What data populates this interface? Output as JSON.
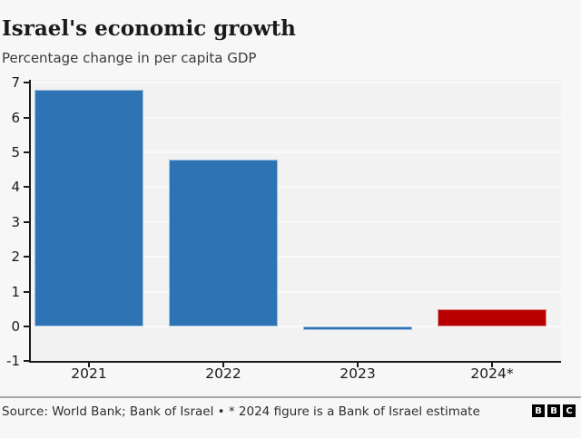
{
  "header": {
    "title": "Israel's economic growth",
    "subtitle": "Percentage change in per capita GDP"
  },
  "chart_data": {
    "type": "bar",
    "title": "Israel's economic growth",
    "subtitle": "Percentage change in per capita GDP",
    "categories": [
      "2021",
      "2022",
      "2023",
      "2024*"
    ],
    "values": [
      6.8,
      4.8,
      -0.1,
      0.5
    ],
    "bar_colors": [
      "#2e74b5",
      "#2e74b5",
      "#2e74b5",
      "#b80000"
    ],
    "xlabel": "",
    "ylabel": "",
    "ylim": [
      -1,
      7
    ],
    "yticks": [
      7,
      6,
      5,
      4,
      3,
      2,
      1,
      0,
      -1
    ],
    "grid": true,
    "legend": "none",
    "plot_background": "#f2f2f2",
    "accent_blue": "#2e74b5",
    "accent_red": "#b80000"
  },
  "footer": {
    "source": "Source: World Bank; Bank of Israel • * 2024 figure is a Bank of Israel estimate",
    "logo_letters": [
      "B",
      "B",
      "C"
    ]
  }
}
